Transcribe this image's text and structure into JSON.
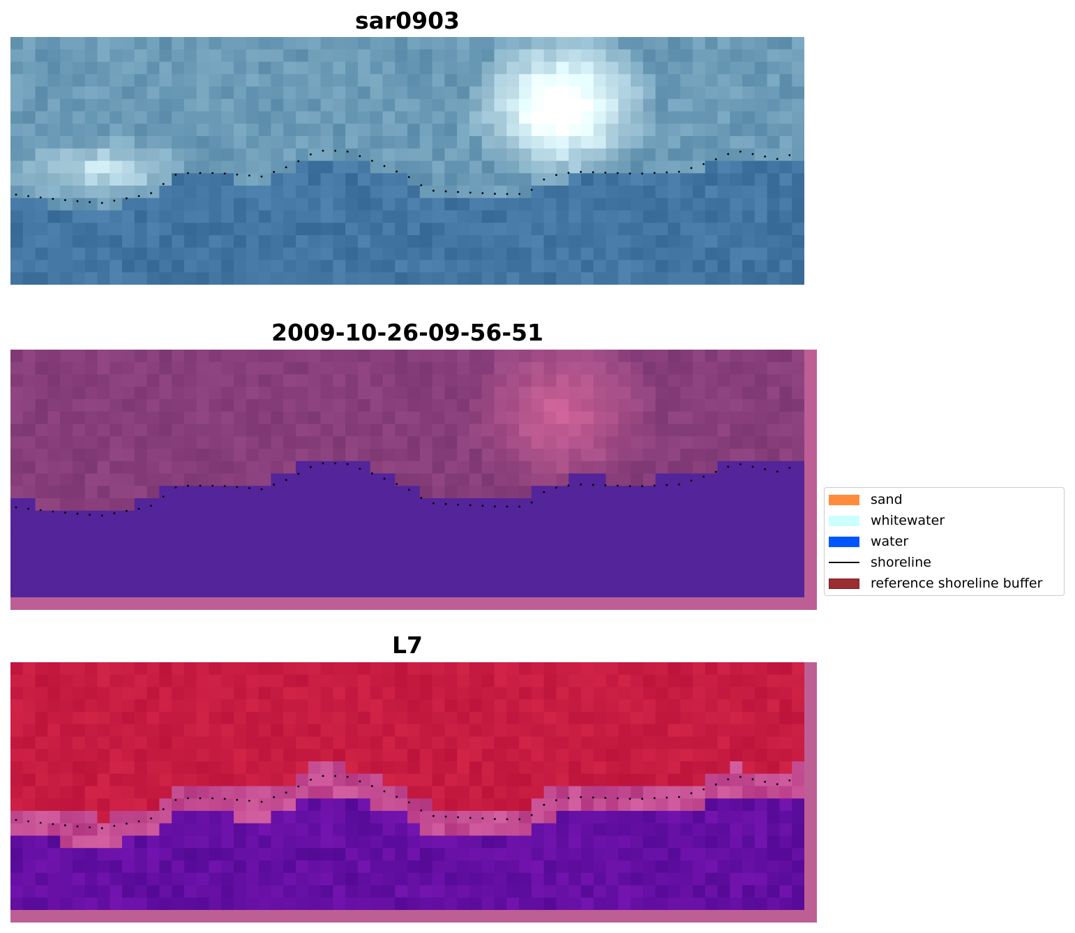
{
  "panels": [
    {
      "title": "sar0903",
      "scheme": "sar"
    },
    {
      "title": "2009-10-26-09-56-51",
      "scheme": "classified"
    },
    {
      "title": "L7",
      "scheme": "nir"
    }
  ],
  "legend": {
    "items": [
      {
        "label": "sand",
        "color": "#ff8c3c",
        "type": "patch"
      },
      {
        "label": "whitewater",
        "color": "#ccffff",
        "type": "patch"
      },
      {
        "label": "water",
        "color": "#0055ff",
        "type": "patch"
      },
      {
        "label": "shoreline",
        "color": "#000000",
        "type": "line"
      },
      {
        "label": "reference shoreline buffer",
        "color": "#9b2d30",
        "type": "patch"
      }
    ]
  },
  "colors": {
    "buffer_border": "#bd5f94",
    "water_class": "#53249a",
    "shoreline_dots": "#000000"
  }
}
